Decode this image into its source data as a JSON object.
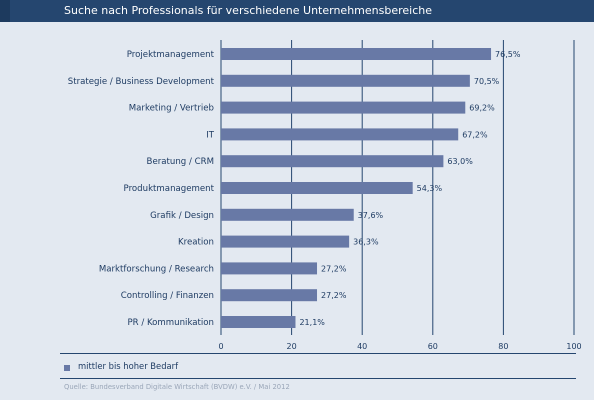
{
  "header": {
    "title": "Suche nach Professionals für verschiedene Unternehmensbereiche"
  },
  "chart_data": {
    "type": "bar",
    "orientation": "horizontal",
    "categories": [
      "Projektmanagement",
      "Strategie / Business Development",
      "Marketing / Vertrieb",
      "IT",
      "Beratung / CRM",
      "Produktmanagement",
      "Grafik / Design",
      "Kreation",
      "Marktforschung / Research",
      "Controlling / Finanzen",
      "PR / Kommunikation"
    ],
    "series": [
      {
        "name": "mittler bis hoher Bedarf",
        "values": [
          76.5,
          70.5,
          69.2,
          67.2,
          63.0,
          54.3,
          37.6,
          36.3,
          27.2,
          27.2,
          21.1
        ],
        "labels": [
          "76,5%",
          "70,5%",
          "69,2%",
          "67,2%",
          "63,0%",
          "54,3%",
          "37,6%",
          "36,3%",
          "27,2%",
          "27,2%",
          "21,1%"
        ]
      }
    ],
    "xlim": [
      0,
      100
    ],
    "xticks": [
      0,
      20,
      40,
      60,
      80,
      100
    ],
    "grid": true,
    "legend_position": "bottom-left",
    "bar_color": "#6879a6"
  },
  "legend": {
    "label": "mittler bis hoher Bedarf"
  },
  "footer": {
    "source": "Quelle: Bundesverband Digitale Wirtschaft (BVDW) e.V. / Mai 2012"
  },
  "colors": {
    "header": "#25466f",
    "background": "#e3e9f1",
    "bar": "#6879a6",
    "grid": "#25466f",
    "text": "#1f3c63"
  }
}
